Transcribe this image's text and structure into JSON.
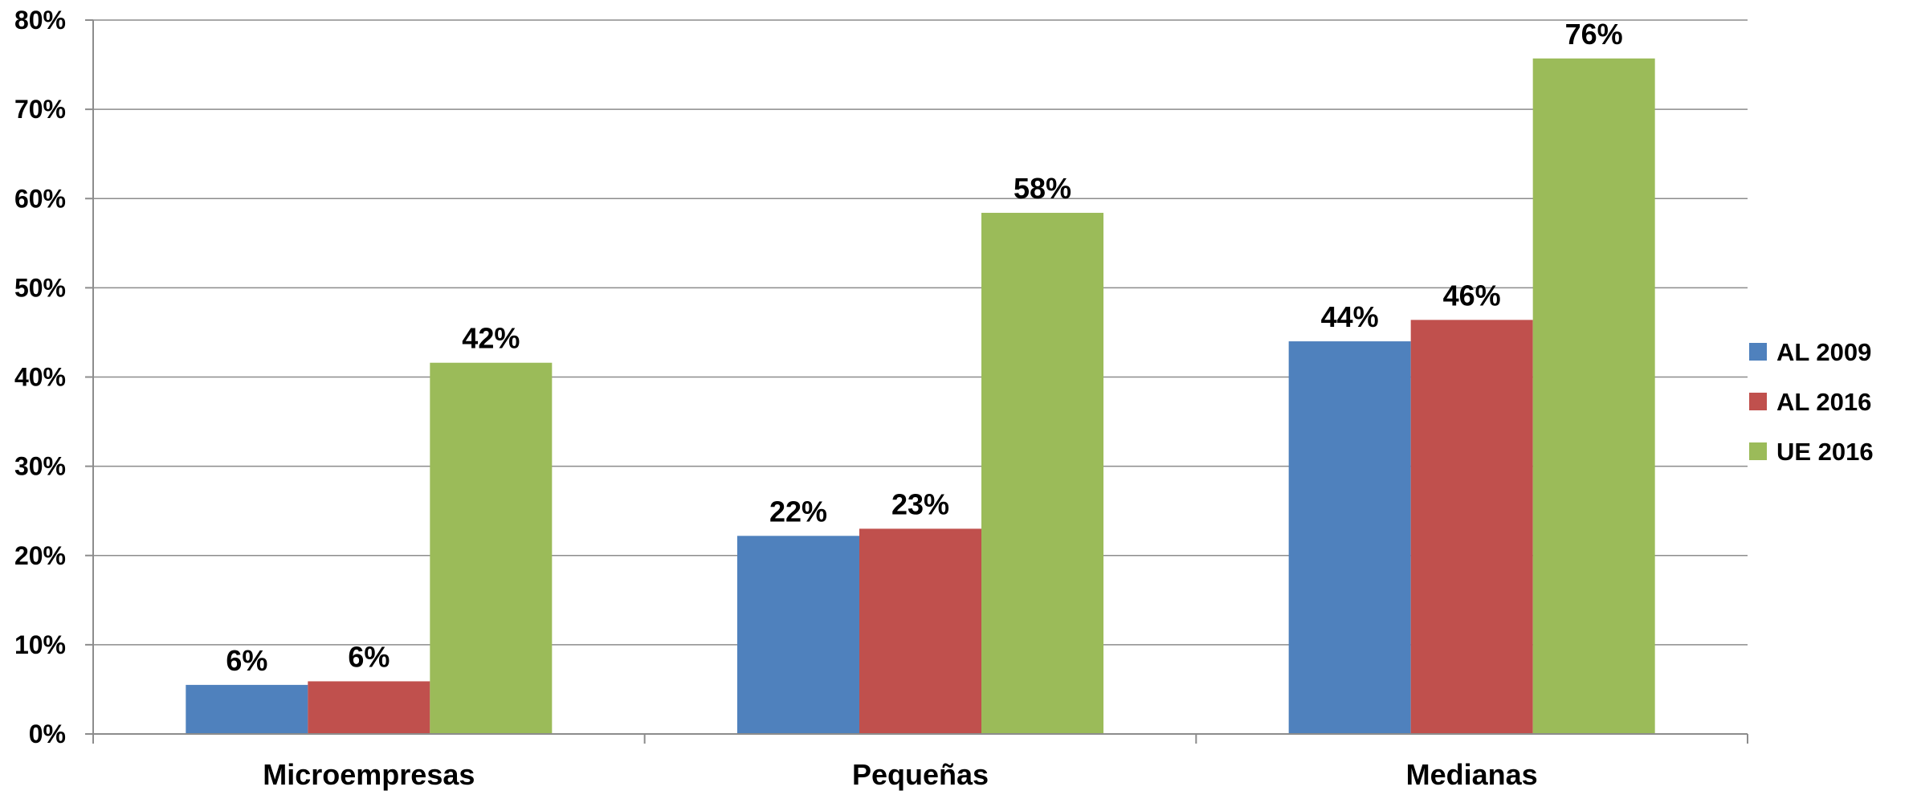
{
  "chart_data": {
    "type": "bar",
    "title": "",
    "xlabel": "",
    "ylabel": "",
    "categories": [
      "Microempresas",
      "Pequeñas",
      "Medianas"
    ],
    "series": [
      {
        "name": "AL 2009",
        "color": "#4f81bd",
        "values": [
          5.5,
          22.2,
          44.0
        ],
        "labels": [
          "6%",
          "22%",
          "44%"
        ]
      },
      {
        "name": "AL 2016",
        "color": "#c0504d",
        "values": [
          5.9,
          23.0,
          46.4
        ],
        "labels": [
          "6%",
          "23%",
          "46%"
        ]
      },
      {
        "name": "UE 2016",
        "color": "#9bbb59",
        "values": [
          41.6,
          58.4,
          75.7
        ],
        "labels": [
          "42%",
          "58%",
          "76%"
        ]
      }
    ],
    "ylim": [
      0,
      80
    ],
    "yticks": [
      0,
      10,
      20,
      30,
      40,
      50,
      60,
      70,
      80
    ],
    "ytick_labels": [
      "0%",
      "10%",
      "20%",
      "30%",
      "40%",
      "50%",
      "60%",
      "70%",
      "80%"
    ],
    "grid": true,
    "legend_position": "right"
  }
}
